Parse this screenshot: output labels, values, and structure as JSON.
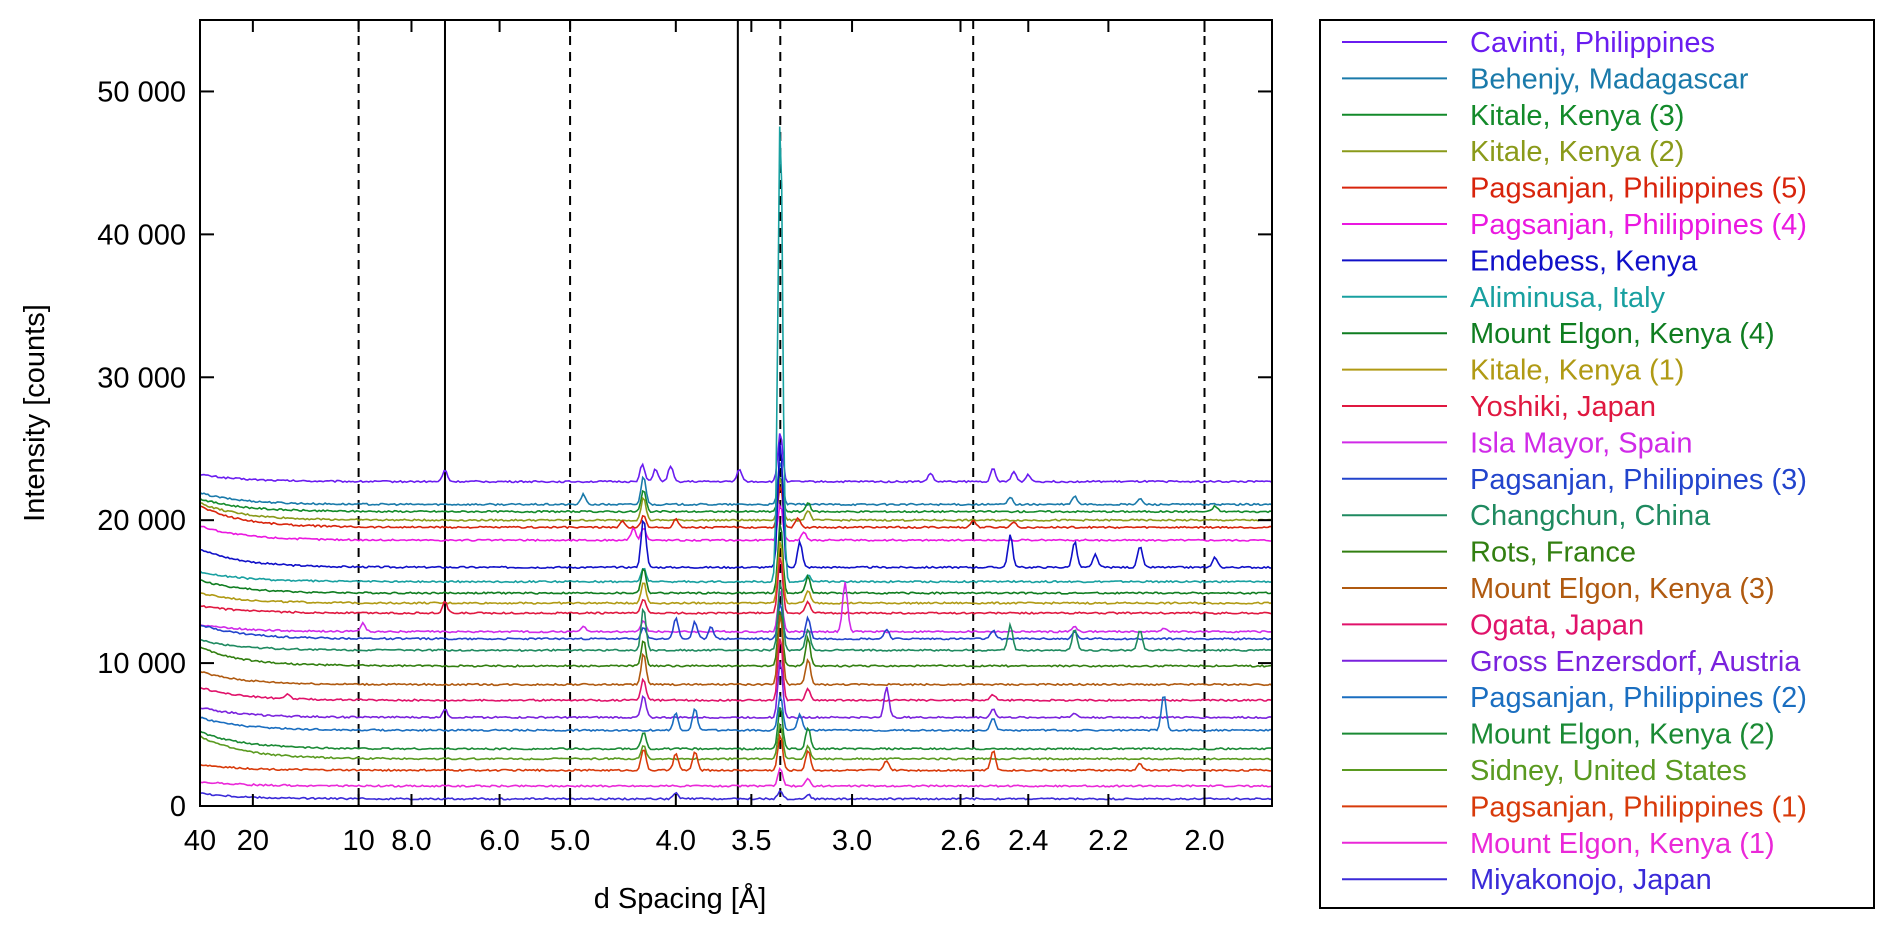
{
  "chart_data": {
    "type": "line",
    "xlabel": "d Spacing [Å]",
    "ylabel": "Intensity [counts]",
    "x_scale": "reciprocal",
    "xlim": [
      40,
      1.88
    ],
    "ylim": [
      0,
      55000
    ],
    "x_ticks": [
      {
        "value": 40,
        "label": "40"
      },
      {
        "value": 20,
        "label": "20"
      },
      {
        "value": 10,
        "label": "10"
      },
      {
        "value": 8,
        "label": "8.0"
      },
      {
        "value": 6,
        "label": "6.0"
      },
      {
        "value": 5,
        "label": "5.0"
      },
      {
        "value": 4,
        "label": "4.0"
      },
      {
        "value": 3.5,
        "label": "3.5"
      },
      {
        "value": 3,
        "label": "3.0"
      },
      {
        "value": 2.6,
        "label": "2.6"
      },
      {
        "value": 2.4,
        "label": "2.4"
      },
      {
        "value": 2.2,
        "label": "2.2"
      },
      {
        "value": 2,
        "label": "2.0"
      }
    ],
    "y_ticks": [
      {
        "value": 0,
        "label": "0"
      },
      {
        "value": 10000,
        "label": "10 000"
      },
      {
        "value": 20000,
        "label": "20 000"
      },
      {
        "value": 30000,
        "label": "30 000"
      },
      {
        "value": 40000,
        "label": "40 000"
      },
      {
        "value": 50000,
        "label": "50 000"
      }
    ],
    "reference_lines": [
      {
        "d": 10,
        "style": "dashed"
      },
      {
        "d": 7.1,
        "style": "solid"
      },
      {
        "d": 5.0,
        "style": "dashed"
      },
      {
        "d": 3.58,
        "style": "solid"
      },
      {
        "d": 3.34,
        "style": "dashed"
      },
      {
        "d": 2.56,
        "style": "dashed"
      },
      {
        "d": 2.0,
        "style": "dashed"
      }
    ],
    "legend_position": "right-outside",
    "series": [
      {
        "name": "Cavinti, Philippines",
        "color": "#6a1cf0",
        "offset": 22700,
        "start_rise": 500,
        "peaks": [
          [
            7.1,
            800
          ],
          [
            4.27,
            1200
          ],
          [
            4.16,
            900
          ],
          [
            4.04,
            1100
          ],
          [
            3.57,
            900
          ],
          [
            3.34,
            3500
          ],
          [
            2.7,
            600
          ],
          [
            2.5,
            900
          ],
          [
            2.44,
            700
          ],
          [
            2.4,
            500
          ]
        ]
      },
      {
        "name": "Behenjy, Madagascar",
        "color": "#1a7aaa",
        "offset": 21100,
        "start_rise": 800,
        "peaks": [
          [
            4.85,
            700
          ],
          [
            4.26,
            2000
          ],
          [
            3.34,
            3000
          ],
          [
            2.45,
            500
          ],
          [
            2.28,
            600
          ],
          [
            2.13,
            400
          ]
        ]
      },
      {
        "name": "Kitale, Kenya (3)",
        "color": "#138a2a",
        "offset": 20600,
        "start_rise": 900,
        "peaks": [
          [
            4.26,
            1500
          ],
          [
            3.34,
            2500
          ],
          [
            3.2,
            600
          ],
          [
            1.98,
            400
          ]
        ]
      },
      {
        "name": "Kitale, Kenya (2)",
        "color": "#8a9a1a",
        "offset": 20000,
        "start_rise": 1200,
        "peaks": [
          [
            4.26,
            1600
          ],
          [
            3.34,
            3000
          ],
          [
            3.2,
            700
          ]
        ]
      },
      {
        "name": "Pagsanjan, Philippines (5)",
        "color": "#d8240c",
        "offset": 19500,
        "start_rise": 1500,
        "peaks": [
          [
            4.45,
            400
          ],
          [
            4.26,
            800
          ],
          [
            4.0,
            600
          ],
          [
            3.34,
            3000
          ],
          [
            3.25,
            700
          ],
          [
            2.56,
            500
          ],
          [
            2.44,
            400
          ]
        ]
      },
      {
        "name": "Pagsanjan, Philippines (4)",
        "color": "#ea18e0",
        "offset": 18600,
        "start_rise": 1000,
        "peaks": [
          [
            4.35,
            800
          ],
          [
            4.26,
            900
          ],
          [
            3.34,
            2500
          ],
          [
            3.22,
            600
          ]
        ]
      },
      {
        "name": "Endebess, Kenya",
        "color": "#1010c8",
        "offset": 16700,
        "start_rise": 1300,
        "peaks": [
          [
            4.26,
            3500
          ],
          [
            3.34,
            9000
          ],
          [
            3.24,
            1800
          ],
          [
            2.45,
            2300
          ],
          [
            2.28,
            1800
          ],
          [
            2.23,
            900
          ],
          [
            2.13,
            1500
          ],
          [
            1.98,
            700
          ]
        ]
      },
      {
        "name": "Aliminusa, Italy",
        "color": "#18a0a0",
        "offset": 15700,
        "start_rise": 700,
        "peaks": [
          [
            4.26,
            1000
          ],
          [
            3.34,
            33000
          ],
          [
            3.2,
            500
          ]
        ]
      },
      {
        "name": "Mount Elgon, Kenya (4)",
        "color": "#0f7d20",
        "offset": 14900,
        "start_rise": 900,
        "peaks": [
          [
            4.26,
            1800
          ],
          [
            3.34,
            5000
          ],
          [
            3.2,
            1200
          ]
        ]
      },
      {
        "name": "Kitale, Kenya (1)",
        "color": "#b09a14",
        "offset": 14200,
        "start_rise": 700,
        "peaks": [
          [
            4.26,
            1500
          ],
          [
            3.34,
            4500
          ],
          [
            3.2,
            900
          ]
        ]
      },
      {
        "name": "Yoshiki, Japan",
        "color": "#e01840",
        "offset": 13500,
        "start_rise": 500,
        "peaks": [
          [
            7.1,
            800
          ],
          [
            4.26,
            1000
          ],
          [
            3.34,
            4000
          ],
          [
            3.2,
            800
          ]
        ]
      },
      {
        "name": "Isla Mayor, Spain",
        "color": "#d02ae8",
        "offset": 12200,
        "start_rise": 500,
        "peaks": [
          [
            9.8,
            600
          ],
          [
            4.85,
            400
          ],
          [
            4.26,
            800
          ],
          [
            3.34,
            3000
          ],
          [
            3.03,
            3500
          ],
          [
            2.28,
            400
          ],
          [
            2.08,
            300
          ]
        ]
      },
      {
        "name": "Pagsanjan, Philippines (3)",
        "color": "#2244cc",
        "offset": 11700,
        "start_rise": 1000,
        "peaks": [
          [
            4.26,
            800
          ],
          [
            4.0,
            1500
          ],
          [
            3.86,
            1200
          ],
          [
            3.75,
            900
          ],
          [
            3.34,
            2500
          ],
          [
            3.2,
            1500
          ],
          [
            2.86,
            700
          ],
          [
            2.5,
            600
          ],
          [
            2.28,
            500
          ]
        ]
      },
      {
        "name": "Changchun, China",
        "color": "#1f8a60",
        "offset": 10900,
        "start_rise": 700,
        "peaks": [
          [
            4.26,
            3000
          ],
          [
            3.34,
            5000
          ],
          [
            3.2,
            1500
          ],
          [
            2.45,
            1800
          ],
          [
            2.28,
            1500
          ],
          [
            2.13,
            1400
          ]
        ]
      },
      {
        "name": "Rots, France",
        "color": "#327f10",
        "offset": 9800,
        "start_rise": 1300,
        "peaks": [
          [
            4.26,
            1800
          ],
          [
            3.34,
            4000
          ],
          [
            3.2,
            2000
          ]
        ]
      },
      {
        "name": "Mount Elgon, Kenya (3)",
        "color": "#b05a10",
        "offset": 8500,
        "start_rise": 900,
        "peaks": [
          [
            4.26,
            2200
          ],
          [
            3.34,
            5000
          ],
          [
            3.2,
            1800
          ]
        ]
      },
      {
        "name": "Ogata, Japan",
        "color": "#e0126a",
        "offset": 7400,
        "start_rise": 900,
        "peaks": [
          [
            15,
            300
          ],
          [
            4.26,
            1500
          ],
          [
            3.34,
            4500
          ],
          [
            3.2,
            800
          ],
          [
            2.5,
            400
          ]
        ]
      },
      {
        "name": "Gross Enzersdorf, Austria",
        "color": "#7a22dd",
        "offset": 6200,
        "start_rise": 700,
        "peaks": [
          [
            7.1,
            600
          ],
          [
            4.26,
            1500
          ],
          [
            3.34,
            4000
          ],
          [
            2.86,
            2200
          ],
          [
            2.5,
            600
          ],
          [
            2.28,
            300
          ]
        ]
      },
      {
        "name": "Pagsanjan, Philippines (2)",
        "color": "#1a6ec0",
        "offset": 5300,
        "start_rise": 900,
        "peaks": [
          [
            4.0,
            1200
          ],
          [
            3.86,
            1500
          ],
          [
            3.34,
            2500
          ],
          [
            3.24,
            1200
          ],
          [
            2.5,
            900
          ],
          [
            2.08,
            2500
          ]
        ]
      },
      {
        "name": "Mount Elgon, Kenya (2)",
        "color": "#1a8a34",
        "offset": 4000,
        "start_rise": 1200,
        "peaks": [
          [
            4.26,
            1200
          ],
          [
            3.34,
            3000
          ],
          [
            3.2,
            1500
          ]
        ]
      },
      {
        "name": "Sidney, United States",
        "color": "#5a9a20",
        "offset": 3300,
        "start_rise": 1600,
        "peaks": [
          [
            4.26,
            1000
          ],
          [
            3.34,
            2500
          ],
          [
            3.2,
            900
          ]
        ]
      },
      {
        "name": "Pagsanjan, Philippines (1)",
        "color": "#d83a0a",
        "offset": 2500,
        "start_rise": 400,
        "peaks": [
          [
            4.26,
            1500
          ],
          [
            4.0,
            1200
          ],
          [
            3.86,
            1300
          ],
          [
            3.34,
            2500
          ],
          [
            3.2,
            1400
          ],
          [
            2.86,
            700
          ],
          [
            2.5,
            1400
          ],
          [
            2.13,
            500
          ]
        ]
      },
      {
        "name": "Mount Elgon, Kenya (1)",
        "color": "#ea28d8",
        "offset": 1400,
        "start_rise": 300,
        "peaks": [
          [
            3.34,
            1200
          ],
          [
            3.2,
            500
          ]
        ]
      },
      {
        "name": "Miyakonojo, Japan",
        "color": "#3a2ad8",
        "offset": 500,
        "start_rise": 400,
        "peaks": [
          [
            4.0,
            400
          ],
          [
            3.34,
            600
          ],
          [
            3.2,
            300
          ]
        ]
      }
    ]
  }
}
